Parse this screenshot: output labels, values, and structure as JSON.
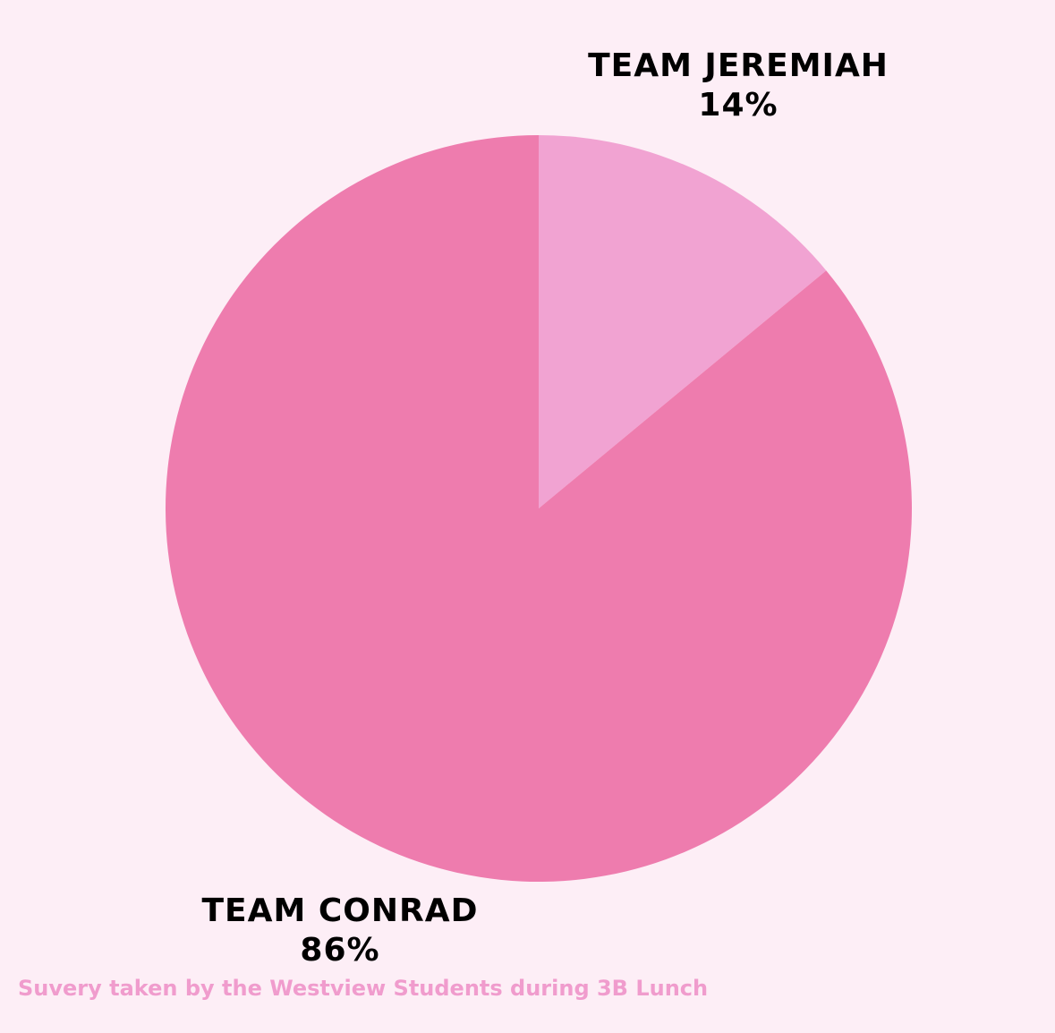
{
  "chart_data": {
    "type": "pie",
    "categories": [
      "TEAM JEREMIAH",
      "TEAM CONRAD"
    ],
    "values": [
      14,
      86
    ],
    "value_labels": [
      "14%",
      "86%"
    ],
    "colors": [
      "#f1a3d2",
      "#ee7cae"
    ],
    "start_angle_deg": 0,
    "direction": "clockwise",
    "background": "#fdeef6"
  },
  "labels": {
    "jeremiah_name": "TEAM JEREMIAH",
    "jeremiah_pct": "14%",
    "conrad_name": "TEAM CONRAD",
    "conrad_pct": "86%"
  },
  "footnote": "Suvery taken by the Westview Students during 3B Lunch"
}
